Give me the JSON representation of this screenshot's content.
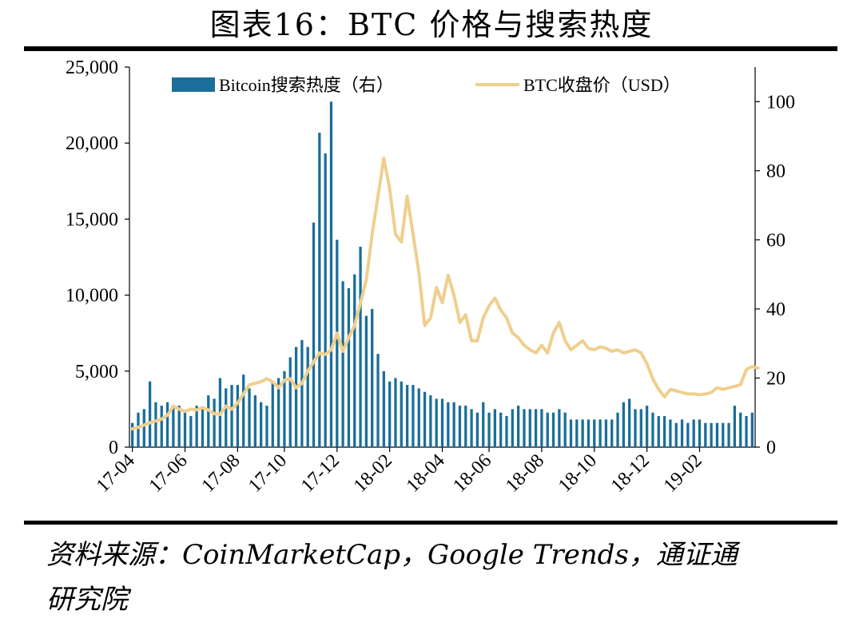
{
  "title": "图表16：BTC 价格与搜索热度",
  "source_line1": "资料来源：CoinMarketCap，Google Trends，通证通",
  "source_line2": "研究院",
  "colors": {
    "bar": "#1a6e9a",
    "line": "#efcf8e"
  },
  "chart_data": {
    "type": "bar+line",
    "title": "",
    "left_axis": {
      "min": 0,
      "max": 25000,
      "ticks": [
        "0",
        "5,000",
        "10,000",
        "15,000",
        "20,000",
        "25,000"
      ],
      "tick_values": [
        0,
        5000,
        10000,
        15000,
        20000,
        25000
      ]
    },
    "right_axis": {
      "min": 0,
      "max": 110,
      "ticks": [
        "0",
        "20",
        "40",
        "60",
        "80",
        "100"
      ],
      "tick_values": [
        0,
        20,
        40,
        60,
        80,
        100
      ]
    },
    "x_ticks": [
      "17-04",
      "17-06",
      "17-08",
      "17-10",
      "17-12",
      "18-02",
      "18-04",
      "18-06",
      "18-08",
      "18-10",
      "18-12",
      "19-02"
    ],
    "legend": [
      "Bitcoin搜索热度（右）",
      "BTC收盘价（USD）"
    ],
    "series": [
      {
        "name": "Bitcoin搜索热度（右）",
        "type": "bar",
        "axis": "right",
        "values": [
          7,
          10,
          11,
          19,
          13,
          12,
          13,
          12,
          12,
          10,
          9,
          12,
          11,
          15,
          14,
          20,
          17,
          18,
          18,
          21,
          17,
          15,
          13,
          12,
          19,
          20,
          22,
          26,
          29,
          31,
          29,
          65,
          91,
          85,
          100,
          60,
          48,
          46,
          50,
          58,
          38,
          40,
          27,
          22,
          19,
          20,
          19,
          18,
          18,
          17,
          16,
          15,
          14,
          14,
          13,
          13,
          12,
          12,
          11,
          10,
          13,
          10,
          11,
          10,
          9,
          11,
          12,
          11,
          11,
          11,
          11,
          10,
          10,
          11,
          10,
          8,
          8,
          8,
          8,
          8,
          8,
          8,
          8,
          10,
          13,
          14,
          11,
          11,
          12,
          10,
          9,
          9,
          8,
          7,
          8,
          7,
          8,
          8,
          7,
          7,
          7,
          7,
          7,
          12,
          10,
          9,
          10
        ]
      },
      {
        "name": "BTC收盘价（USD）",
        "type": "line",
        "axis": "left",
        "points": [
          [
            0,
            1200
          ],
          [
            1,
            1300
          ],
          [
            3,
            1600
          ],
          [
            5,
            1850
          ],
          [
            6,
            2100
          ],
          [
            7,
            2700
          ],
          [
            8,
            2500
          ],
          [
            9,
            2350
          ],
          [
            10,
            2500
          ],
          [
            11,
            2450
          ],
          [
            12,
            2600
          ],
          [
            13,
            2450
          ],
          [
            14,
            2200
          ],
          [
            15,
            2150
          ],
          [
            16,
            2700
          ],
          [
            17,
            2500
          ],
          [
            18,
            2900
          ],
          [
            19,
            3500
          ],
          [
            20,
            4100
          ],
          [
            21,
            4200
          ],
          [
            22,
            4300
          ],
          [
            23,
            4500
          ],
          [
            24,
            4300
          ],
          [
            25,
            3900
          ],
          [
            26,
            4400
          ],
          [
            27,
            4500
          ],
          [
            28,
            3900
          ],
          [
            29,
            4200
          ],
          [
            30,
            5000
          ],
          [
            31,
            5600
          ],
          [
            32,
            6200
          ],
          [
            33,
            6100
          ],
          [
            34,
            6400
          ],
          [
            35,
            7500
          ],
          [
            36,
            6300
          ],
          [
            37,
            7200
          ],
          [
            38,
            8000
          ],
          [
            39,
            9500
          ],
          [
            40,
            11000
          ],
          [
            41,
            14000
          ],
          [
            42,
            16500
          ],
          [
            43,
            19000
          ],
          [
            44,
            17000
          ],
          [
            45,
            14000
          ],
          [
            46,
            13500
          ],
          [
            47,
            16500
          ],
          [
            48,
            14000
          ],
          [
            49,
            11500
          ],
          [
            50,
            8000
          ],
          [
            51,
            8500
          ],
          [
            52,
            10500
          ],
          [
            53,
            9500
          ],
          [
            54,
            11300
          ],
          [
            55,
            10000
          ],
          [
            56,
            8200
          ],
          [
            57,
            8700
          ],
          [
            58,
            7000
          ],
          [
            59,
            7000
          ],
          [
            60,
            8500
          ],
          [
            61,
            9300
          ],
          [
            62,
            9800
          ],
          [
            63,
            9000
          ],
          [
            64,
            8500
          ],
          [
            65,
            7500
          ],
          [
            66,
            7200
          ],
          [
            67,
            6700
          ],
          [
            68,
            6400
          ],
          [
            69,
            6200
          ],
          [
            70,
            6700
          ],
          [
            71,
            6200
          ],
          [
            72,
            7500
          ],
          [
            73,
            8200
          ],
          [
            74,
            7000
          ],
          [
            75,
            6400
          ],
          [
            76,
            6700
          ],
          [
            77,
            7000
          ],
          [
            78,
            6500
          ],
          [
            79,
            6400
          ],
          [
            80,
            6600
          ],
          [
            81,
            6500
          ],
          [
            82,
            6300
          ],
          [
            83,
            6400
          ],
          [
            84,
            6200
          ],
          [
            85,
            6300
          ],
          [
            86,
            6400
          ],
          [
            87,
            6200
          ],
          [
            88,
            5500
          ],
          [
            89,
            4500
          ],
          [
            90,
            3800
          ],
          [
            91,
            3300
          ],
          [
            92,
            3800
          ],
          [
            93,
            3700
          ],
          [
            94,
            3600
          ],
          [
            95,
            3500
          ],
          [
            96,
            3500
          ],
          [
            97,
            3450
          ],
          [
            98,
            3500
          ],
          [
            99,
            3600
          ],
          [
            100,
            3900
          ],
          [
            101,
            3800
          ],
          [
            102,
            3900
          ],
          [
            103,
            4000
          ],
          [
            104,
            4100
          ],
          [
            105,
            5100
          ],
          [
            106,
            5300
          ],
          [
            107,
            5200
          ]
        ]
      }
    ]
  }
}
